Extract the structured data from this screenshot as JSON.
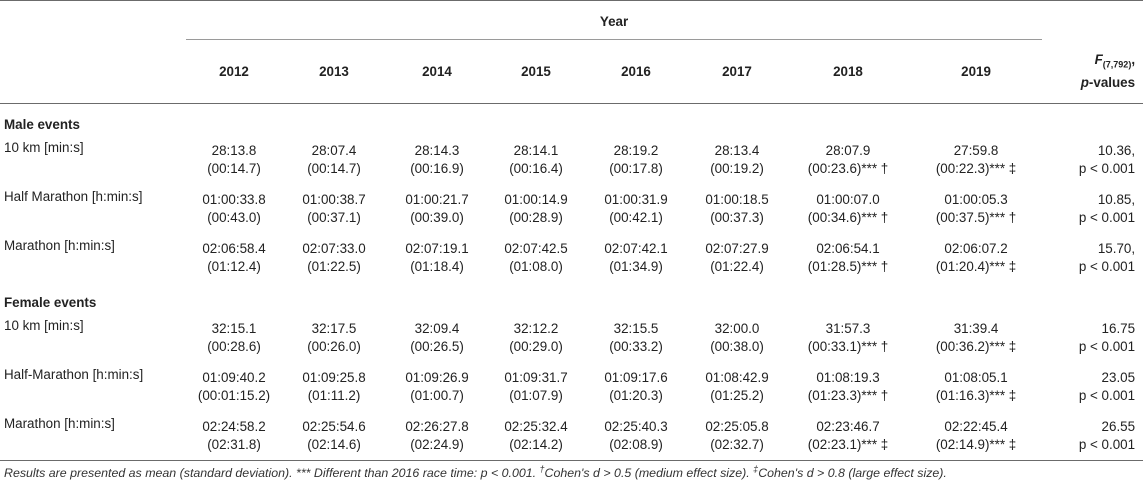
{
  "header": {
    "year_label": "Year",
    "years": [
      "2012",
      "2013",
      "2014",
      "2015",
      "2016",
      "2017",
      "2018",
      "2019"
    ],
    "f_label_main": "F",
    "f_label_sub": "(7,792)",
    "f_label_comma": ",",
    "p_label": "p",
    "p_label_suffix": "-values"
  },
  "groups": [
    {
      "title": "Male events",
      "rows": [
        {
          "label": "10 km [min:s]",
          "cells": [
            {
              "mean": "28:13.8",
              "sd": "(00:14.7)"
            },
            {
              "mean": "28:07.4",
              "sd": "(00:14.7)"
            },
            {
              "mean": "28:14.3",
              "sd": "(00:16.9)"
            },
            {
              "mean": "28:14.1",
              "sd": "(00:16.4)"
            },
            {
              "mean": "28:19.2",
              "sd": "(00:17.8)"
            },
            {
              "mean": "28:13.4",
              "sd": "(00:19.2)"
            },
            {
              "mean": "28:07.9",
              "sd": "(00:23.6)*** †"
            },
            {
              "mean": "27:59.8",
              "sd": "(00:22.3)*** ‡"
            }
          ],
          "f": "10.36,",
          "p": "p < 0.001"
        },
        {
          "label": "Half Marathon [h:min:s]",
          "cells": [
            {
              "mean": "01:00:33.8",
              "sd": "(00:43.0)"
            },
            {
              "mean": "01:00:38.7",
              "sd": "(00:37.1)"
            },
            {
              "mean": "01:00:21.7",
              "sd": "(00:39.0)"
            },
            {
              "mean": "01:00:14.9",
              "sd": "(00:28.9)"
            },
            {
              "mean": "01:00:31.9",
              "sd": "(00:42.1)"
            },
            {
              "mean": "01:00:18.5",
              "sd": "(00:37.3)"
            },
            {
              "mean": "01:00:07.0",
              "sd": "(00:34.6)*** †"
            },
            {
              "mean": "01:00:05.3",
              "sd": "(00:37.5)*** †"
            }
          ],
          "f": "10.85,",
          "p": "p < 0.001"
        },
        {
          "label": "Marathon [h:min:s]",
          "cells": [
            {
              "mean": "02:06:58.4",
              "sd": "(01:12.4)"
            },
            {
              "mean": "02:07:33.0",
              "sd": "(01:22.5)"
            },
            {
              "mean": "02:07:19.1",
              "sd": "(01:18.4)"
            },
            {
              "mean": "02:07:42.5",
              "sd": "(01:08.0)"
            },
            {
              "mean": "02:07:42.1",
              "sd": "(01:34.9)"
            },
            {
              "mean": "02:07:27.9",
              "sd": "(01:22.4)"
            },
            {
              "mean": "02:06:54.1",
              "sd": "(01:28.5)*** †"
            },
            {
              "mean": "02:06:07.2",
              "sd": "(01:20.4)*** ‡"
            }
          ],
          "f": "15.70,",
          "p": "p < 0.001"
        }
      ]
    },
    {
      "title": "Female events",
      "rows": [
        {
          "label": "10 km [min:s]",
          "cells": [
            {
              "mean": "32:15.1",
              "sd": "(00:28.6)"
            },
            {
              "mean": "32:17.5",
              "sd": "(00:26.0)"
            },
            {
              "mean": "32:09.4",
              "sd": "(00:26.5)"
            },
            {
              "mean": "32:12.2",
              "sd": "(00:29.0)"
            },
            {
              "mean": "32:15.5",
              "sd": "(00:33.2)"
            },
            {
              "mean": "32:00.0",
              "sd": "(00:38.0)"
            },
            {
              "mean": "31:57.3",
              "sd": "(00:33.1)*** †"
            },
            {
              "mean": "31:39.4",
              "sd": "(00:36.2)*** ‡"
            }
          ],
          "f": "16.75",
          "p": "p < 0.001"
        },
        {
          "label": "Half-Marathon [h:min:s]",
          "cells": [
            {
              "mean": "01:09:40.2",
              "sd": "(00:01:15.2)"
            },
            {
              "mean": "01:09:25.8",
              "sd": "(01:11.2)"
            },
            {
              "mean": "01:09:26.9",
              "sd": "(01:00.7)"
            },
            {
              "mean": "01:09:31.7",
              "sd": "(01:07.9)"
            },
            {
              "mean": "01:09:17.6",
              "sd": "(01:20.3)"
            },
            {
              "mean": "01:08:42.9",
              "sd": "(01:25.2)"
            },
            {
              "mean": "01:08:19.3",
              "sd": "(01:23.3)*** †"
            },
            {
              "mean": "01:08:05.1",
              "sd": "(01:16.3)*** ‡"
            }
          ],
          "f": "23.05",
          "p": "p < 0.001"
        },
        {
          "label": "Marathon [h:min:s]",
          "cells": [
            {
              "mean": "02:24:58.2",
              "sd": "(02:31.8)"
            },
            {
              "mean": "02:25:54.6",
              "sd": "(02:14.6)"
            },
            {
              "mean": "02:26:27.8",
              "sd": "(02:24.9)"
            },
            {
              "mean": "02:25:32.4",
              "sd": "(02:14.2)"
            },
            {
              "mean": "02:25:40.3",
              "sd": "(02:08.9)"
            },
            {
              "mean": "02:25:05.8",
              "sd": "(02:32.7)"
            },
            {
              "mean": "02:23:46.7",
              "sd": "(02:23.1)*** ‡"
            },
            {
              "mean": "02:22:45.4",
              "sd": "(02:14.9)*** ‡"
            }
          ],
          "f": "26.55",
          "p": "p < 0.001"
        }
      ]
    }
  ],
  "footnote": {
    "part1": "Results are presented as mean (standard deviation). *** Different than 2016 race time: p < 0.001. ",
    "dagger": "†",
    "part2": "Cohen's d > 0.5 (medium effect size). ",
    "ddagger": "‡",
    "part3": "Cohen's d > 0.8 (large effect size)."
  }
}
